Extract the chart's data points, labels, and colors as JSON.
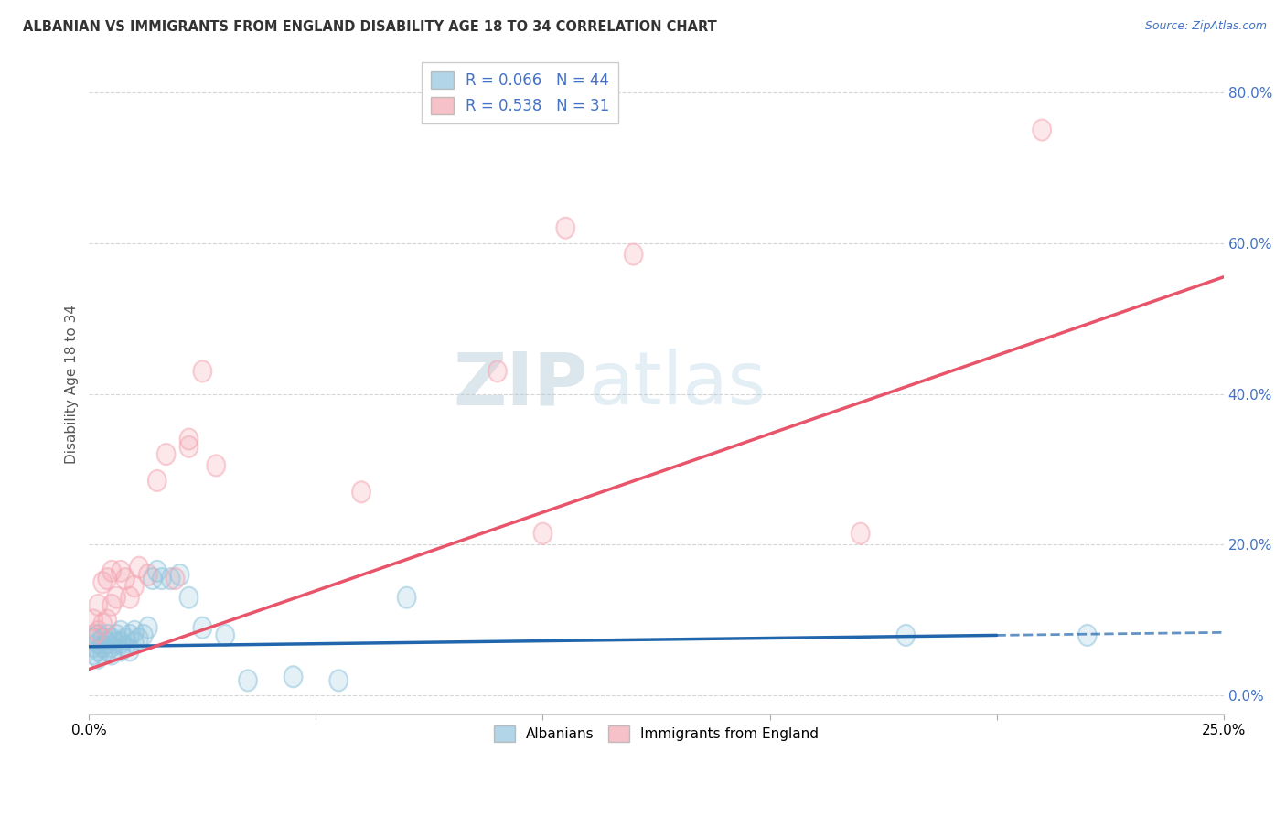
{
  "title": "ALBANIAN VS IMMIGRANTS FROM ENGLAND DISABILITY AGE 18 TO 34 CORRELATION CHART",
  "source": "Source: ZipAtlas.com",
  "ylabel": "Disability Age 18 to 34",
  "yticks": [
    0.0,
    0.2,
    0.4,
    0.6,
    0.8
  ],
  "ytick_labels": [
    "0.0%",
    "20.0%",
    "40.0%",
    "60.0%",
    "80.0%"
  ],
  "xlim": [
    0.0,
    0.25
  ],
  "ylim": [
    -0.025,
    0.85
  ],
  "color_blue": "#92c5de",
  "color_pink": "#f4a7b3",
  "color_blue_line": "#2166ac",
  "color_pink_line": "#e8546a",
  "background_color": "#ffffff",
  "grid_color": "#cccccc",
  "albanians_x": [
    0.001,
    0.001,
    0.001,
    0.002,
    0.002,
    0.002,
    0.002,
    0.003,
    0.003,
    0.003,
    0.004,
    0.004,
    0.004,
    0.005,
    0.005,
    0.005,
    0.006,
    0.006,
    0.007,
    0.007,
    0.007,
    0.008,
    0.008,
    0.009,
    0.009,
    0.01,
    0.01,
    0.011,
    0.012,
    0.013,
    0.014,
    0.015,
    0.016,
    0.018,
    0.02,
    0.022,
    0.025,
    0.03,
    0.035,
    0.045,
    0.055,
    0.07,
    0.18,
    0.22
  ],
  "albanians_y": [
    0.055,
    0.065,
    0.075,
    0.05,
    0.06,
    0.07,
    0.08,
    0.055,
    0.065,
    0.075,
    0.06,
    0.07,
    0.08,
    0.055,
    0.065,
    0.075,
    0.07,
    0.08,
    0.06,
    0.07,
    0.085,
    0.065,
    0.075,
    0.06,
    0.08,
    0.07,
    0.085,
    0.075,
    0.08,
    0.09,
    0.155,
    0.165,
    0.155,
    0.155,
    0.16,
    0.13,
    0.09,
    0.08,
    0.02,
    0.025,
    0.02,
    0.13,
    0.08,
    0.08
  ],
  "england_x": [
    0.001,
    0.001,
    0.002,
    0.002,
    0.003,
    0.003,
    0.004,
    0.004,
    0.005,
    0.005,
    0.006,
    0.007,
    0.008,
    0.009,
    0.01,
    0.011,
    0.013,
    0.015,
    0.017,
    0.019,
    0.022,
    0.022,
    0.025,
    0.028,
    0.06,
    0.09,
    0.1,
    0.105,
    0.12,
    0.17,
    0.21
  ],
  "england_y": [
    0.08,
    0.1,
    0.085,
    0.12,
    0.095,
    0.15,
    0.1,
    0.155,
    0.12,
    0.165,
    0.13,
    0.165,
    0.155,
    0.13,
    0.145,
    0.17,
    0.16,
    0.285,
    0.32,
    0.155,
    0.33,
    0.34,
    0.43,
    0.305,
    0.27,
    0.43,
    0.215,
    0.62,
    0.585,
    0.215,
    0.75
  ],
  "eng_line_x0": 0.0,
  "eng_line_y0": 0.035,
  "eng_line_x1": 0.25,
  "eng_line_y1": 0.555,
  "alb_line_x0": 0.0,
  "alb_line_y0": 0.065,
  "alb_line_x1": 0.2,
  "alb_line_y1": 0.08,
  "alb_line_dash_x0": 0.2,
  "alb_line_dash_x1": 0.25
}
